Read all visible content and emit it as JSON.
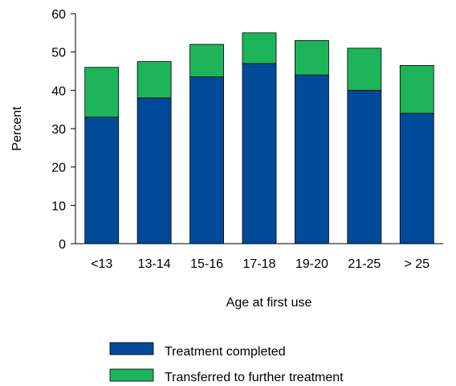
{
  "chart_data": {
    "type": "bar",
    "stacked": true,
    "categories": [
      "<13",
      "13-14",
      "15-16",
      "17-18",
      "19-20",
      "21-25",
      "> 25"
    ],
    "series": [
      {
        "name": "Treatment completed",
        "color": "#004a99",
        "values": [
          33,
          38,
          43.5,
          47,
          44,
          40,
          34
        ]
      },
      {
        "name": "Transferred to further treatment",
        "color": "#009a48",
        "values": [
          13,
          9.5,
          8.5,
          8,
          9,
          11,
          12.5
        ]
      }
    ],
    "bar_fill_colors": [
      "#004a99",
      "#1db45a"
    ],
    "xlabel": "Age at first use",
    "ylabel": "Percent",
    "ylim": [
      0,
      60
    ],
    "yticks": [
      0,
      10,
      20,
      30,
      40,
      50,
      60
    ],
    "grid": false,
    "legend_position": "bottom"
  }
}
